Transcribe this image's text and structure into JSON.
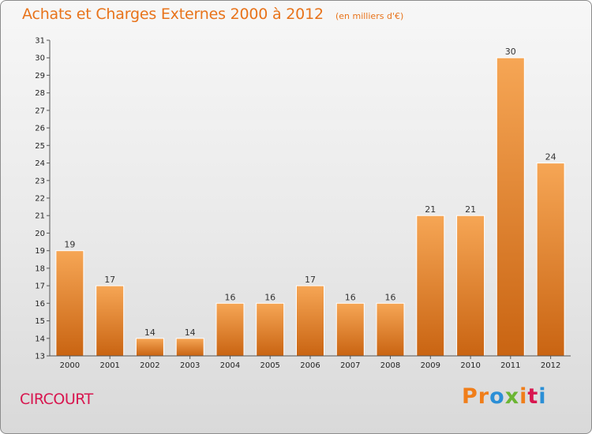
{
  "header": {
    "title": "Achats et Charges Externes 2000 à 2012",
    "unit": "(en milliers d'€)"
  },
  "footer": {
    "place": "CIRCOURT"
  },
  "logo": {
    "letters": [
      "P",
      "r",
      "o",
      "x",
      "i",
      "t",
      "i"
    ],
    "colors": [
      "#f07e1a",
      "#f07e1a",
      "#2b8fd6",
      "#6bb533",
      "#f07e1a",
      "#d8164f",
      "#2b8fd6"
    ]
  },
  "colors": {
    "bar_light": "#f6a655",
    "bar_dark": "#c96412",
    "axis": "#555555"
  },
  "chart_data": {
    "type": "bar",
    "title": "Achats et Charges Externes 2000 à 2012",
    "subtitle": "(en milliers d'€)",
    "categories": [
      "2000",
      "2001",
      "2002",
      "2003",
      "2004",
      "2005",
      "2006",
      "2007",
      "2008",
      "2009",
      "2010",
      "2011",
      "2012"
    ],
    "values": [
      19,
      17,
      14,
      14,
      16,
      16,
      17,
      16,
      16,
      21,
      21,
      30,
      24
    ],
    "ylim": [
      13,
      31
    ],
    "yticks": [
      13,
      14,
      15,
      16,
      17,
      18,
      19,
      20,
      21,
      22,
      23,
      24,
      25,
      26,
      27,
      28,
      29,
      30,
      31
    ],
    "grid": false,
    "legend": "none"
  }
}
